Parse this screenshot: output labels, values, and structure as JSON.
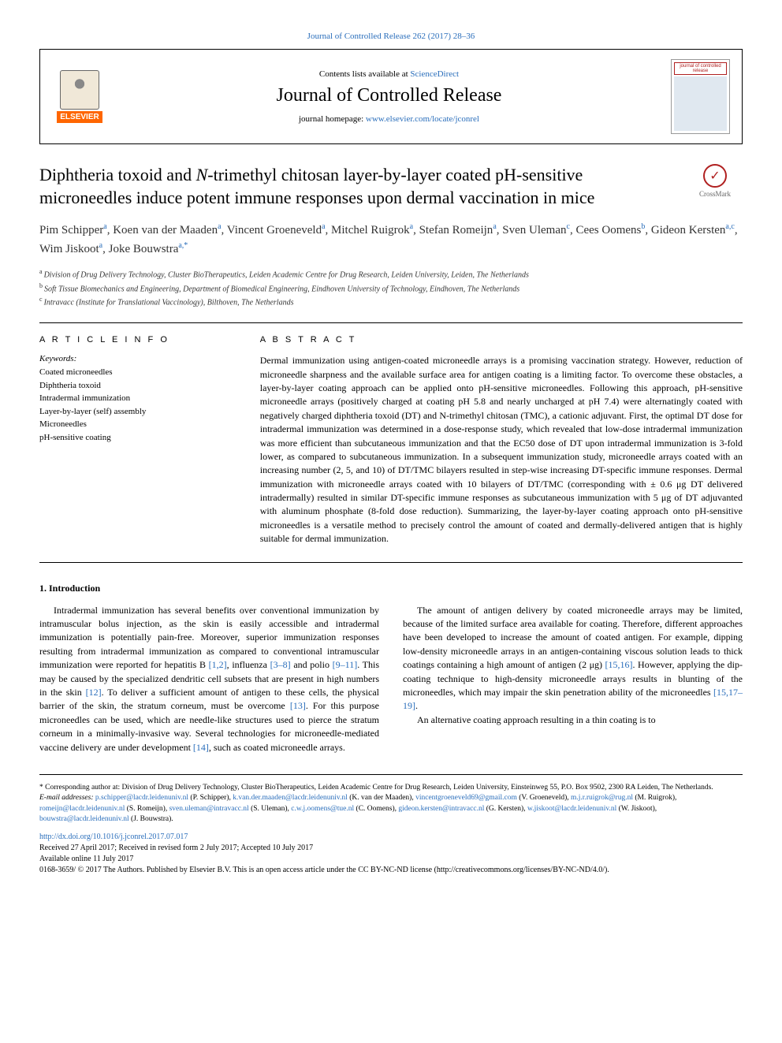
{
  "journal_ref": "Journal of Controlled Release 262 (2017) 28–36",
  "header": {
    "contents_prefix": "Contents lists available at ",
    "contents_link": "ScienceDirect",
    "journal_name": "Journal of Controlled Release",
    "homepage_prefix": "journal homepage: ",
    "homepage_url": "www.elsevier.com/locate/jconrel",
    "publisher_label": "ELSEVIER",
    "cover_text": "journal of controlled release"
  },
  "crossmark_label": "CrossMark",
  "title": "Diphtheria toxoid and N-trimethyl chitosan layer-by-layer coated pH-sensitive microneedles induce potent immune responses upon dermal vaccination in mice",
  "authors_html": "Pim Schipper|a|, Koen van der Maaden|a|, Vincent Groeneveld|a|, Mitchel Ruigrok|a|, Stefan Romeijn|a|, Sven Uleman|c|, Cees Oomens|b|, Gideon Kersten|a,c|, Wim Jiskoot|a|, Joke Bouwstra|a,*|",
  "affiliations": [
    {
      "sup": "a",
      "text": "Division of Drug Delivery Technology, Cluster BioTherapeutics, Leiden Academic Centre for Drug Research, Leiden University, Leiden, The Netherlands"
    },
    {
      "sup": "b",
      "text": "Soft Tissue Biomechanics and Engineering, Department of Biomedical Engineering, Eindhoven University of Technology, Eindhoven, The Netherlands"
    },
    {
      "sup": "c",
      "text": "Intravacc (Institute for Translational Vaccinology), Bilthoven, The Netherlands"
    }
  ],
  "info": {
    "head": "A R T I C L E  I N F O",
    "keywords_label": "Keywords:",
    "keywords": [
      "Coated microneedles",
      "Diphtheria toxoid",
      "Intradermal immunization",
      "Layer-by-layer (self) assembly",
      "Microneedles",
      "pH-sensitive coating"
    ]
  },
  "abstract": {
    "head": "A B S T R A C T",
    "text": "Dermal immunization using antigen-coated microneedle arrays is a promising vaccination strategy. However, reduction of microneedle sharpness and the available surface area for antigen coating is a limiting factor. To overcome these obstacles, a layer-by-layer coating approach can be applied onto pH-sensitive microneedles. Following this approach, pH-sensitive microneedle arrays (positively charged at coating pH 5.8 and nearly uncharged at pH 7.4) were alternatingly coated with negatively charged diphtheria toxoid (DT) and N-trimethyl chitosan (TMC), a cationic adjuvant. First, the optimal DT dose for intradermal immunization was determined in a dose-response study, which revealed that low-dose intradermal immunization was more efficient than subcutaneous immunization and that the EC50 dose of DT upon intradermal immunization is 3-fold lower, as compared to subcutaneous immunization. In a subsequent immunization study, microneedle arrays coated with an increasing number (2, 5, and 10) of DT/TMC bilayers resulted in step-wise increasing DT-specific immune responses. Dermal immunization with microneedle arrays coated with 10 bilayers of DT/TMC (corresponding with ± 0.6 μg DT delivered intradermally) resulted in similar DT-specific immune responses as subcutaneous immunization with 5 μg of DT adjuvanted with aluminum phosphate (8-fold dose reduction). Summarizing, the layer-by-layer coating approach onto pH-sensitive microneedles is a versatile method to precisely control the amount of coated and dermally-delivered antigen that is highly suitable for dermal immunization."
  },
  "intro": {
    "head": "1. Introduction",
    "p1": "Intradermal immunization has several benefits over conventional immunization by intramuscular bolus injection, as the skin is easily accessible and intradermal immunization is potentially pain-free. Moreover, superior immunization responses resulting from intradermal immunization as compared to conventional intramuscular immunization were reported for hepatitis B ",
    "c1": "[1,2]",
    "p1b": ", influenza ",
    "c2": "[3–8]",
    "p1c": " and polio ",
    "c3": "[9–11]",
    "p1d": ". This may be caused by the specialized dendritic cell subsets that are present in high numbers in the skin ",
    "c4": "[12]",
    "p1e": ". To deliver a sufficient amount of antigen to these cells, the physical barrier of the skin, the stratum corneum, must be overcome ",
    "c5": "[13]",
    "p1f": ". For this purpose microneedles can be used, which are needle-like structures used to pierce the stratum corneum in a minimally-invasive way. Several technologies for microneedle-mediated vaccine delivery are under development ",
    "c6": "[14]",
    "p1g": ", such as coated microneedle arrays.",
    "p2": "The amount of antigen delivery by coated microneedle arrays may be limited, because of the limited surface area available for coating. Therefore, different approaches have been developed to increase the amount of coated antigen. For example, dipping low-density microneedle arrays in an antigen-containing viscous solution leads to thick coatings containing a high amount of antigen (2 μg) ",
    "c7": "[15,16]",
    "p2b": ". However, applying the dip-coating technique to high-density microneedle arrays results in blunting of the microneedles, which may impair the skin penetration ability of the microneedles ",
    "c8": "[15,17–19]",
    "p2c": ".",
    "p3": "An alternative coating approach resulting in a thin coating is to"
  },
  "footnotes": {
    "corr_marker": "*",
    "corr_text": " Corresponding author at: Division of Drug Delivery Technology, Cluster BioTherapeutics, Leiden Academic Centre for Drug Research, Leiden University, Einsteinweg 55, P.O. Box 9502, 2300 RA Leiden, The Netherlands.",
    "email_label": "E-mail addresses: ",
    "emails": [
      {
        "addr": "p.schipper@lacdr.leidenuniv.nl",
        "who": " (P. Schipper), "
      },
      {
        "addr": "k.van.der.maaden@lacdr.leidenuniv.nl",
        "who": " (K. van der Maaden), "
      },
      {
        "addr": "vincentgroeneveld69@gmail.com",
        "who": " (V. Groeneveld), "
      },
      {
        "addr": "m.j.r.ruigrok@rug.nl",
        "who": " (M. Ruigrok), "
      },
      {
        "addr": "romeijn@lacdr.leidenuniv.nl",
        "who": " (S. Romeijn), "
      },
      {
        "addr": "sven.uleman@intravacc.nl",
        "who": " (S. Uleman), "
      },
      {
        "addr": "c.w.j.oomens@tue.nl",
        "who": " (C. Oomens), "
      },
      {
        "addr": "gideon.kersten@intravacc.nl",
        "who": " (G. Kersten), "
      },
      {
        "addr": "w.jiskoot@lacdr.leidenuniv.nl",
        "who": " (W. Jiskoot), "
      },
      {
        "addr": "bouwstra@lacdr.leidenuniv.nl",
        "who": " (J. Bouwstra)."
      }
    ]
  },
  "doi": "http://dx.doi.org/10.1016/j.jconrel.2017.07.017",
  "dates": "Received 27 April 2017; Received in revised form 2 July 2017; Accepted 10 July 2017",
  "available": "Available online 11 July 2017",
  "copyright": "0168-3659/ © 2017 The Authors. Published by Elsevier B.V. This is an open access article under the CC BY-NC-ND license (http://creativecommons.org/licenses/BY-NC-ND/4.0/).",
  "colors": {
    "link": "#2a6ebb",
    "elsevier_orange": "#ff6600",
    "crossmark_red": "#b02020"
  }
}
